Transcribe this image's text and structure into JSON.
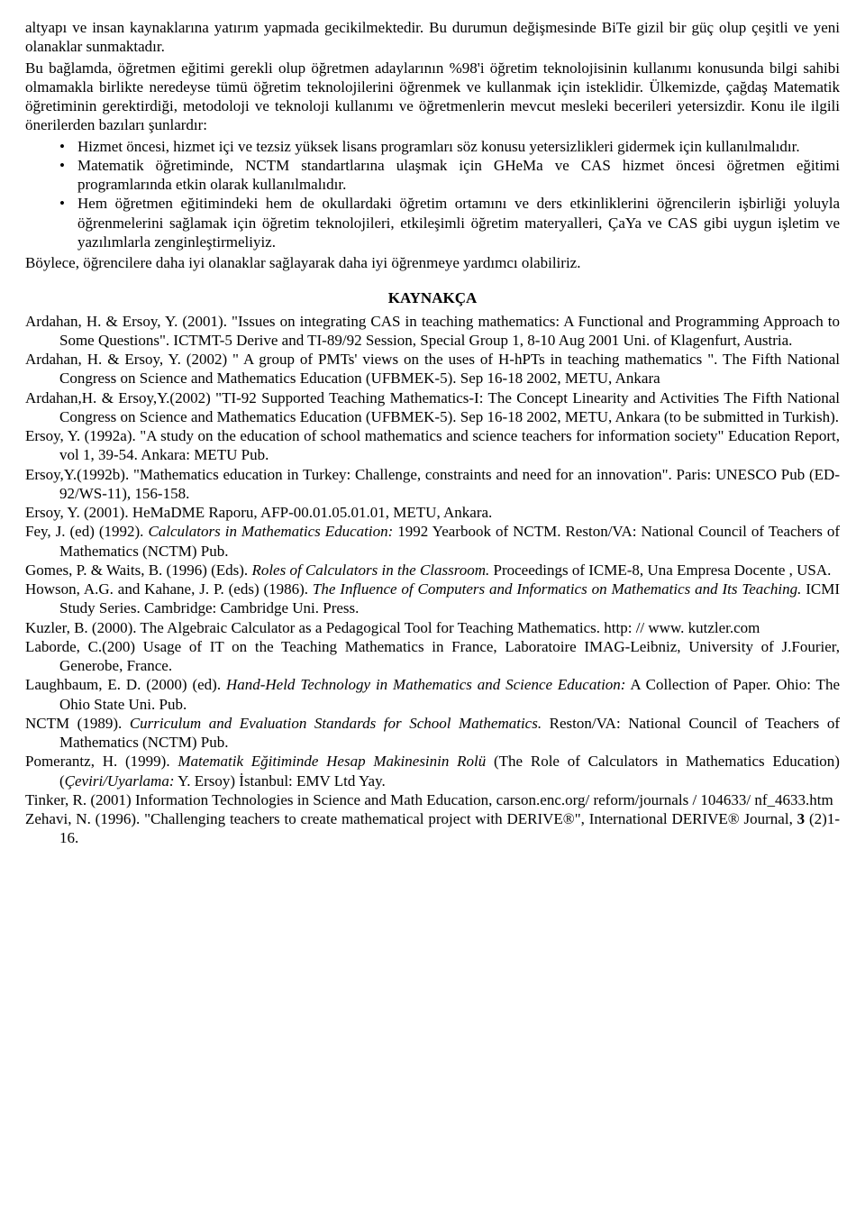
{
  "para1": "altyapı ve insan kaynaklarına yatırım yapmada gecikilmektedir. Bu durumun değişmesinde BiTe gizil bir güç olup çeşitli ve yeni olanaklar sunmaktadır.",
  "para2": "Bu bağlamda, öğretmen eğitimi gerekli olup öğretmen adaylarının %98'i öğretim teknolojisinin kullanımı konusunda bilgi sahibi olmamakla birlikte neredeyse tümü öğretim teknolojilerini öğrenmek ve kullanmak için isteklidir. Ülkemizde, çağdaş Matematik öğretiminin gerektirdiği, metodoloji ve teknoloji kullanımı ve öğretmenlerin mevcut mesleki becerileri yetersizdir. Konu ile ilgili önerilerden bazıları şunlardır:",
  "bullets": [
    "Hizmet öncesi, hizmet içi ve tezsiz yüksek lisans programları söz konusu yetersizlikleri gidermek için kullanılmalıdır.",
    "Matematik öğretiminde, NCTM standartlarına ulaşmak için GHeMa ve CAS hizmet öncesi öğretmen eğitimi programlarında etkin olarak kullanılmalıdır.",
    "Hem öğretmen eğitimindeki hem de okullardaki öğretim ortamını ve ders etkinliklerini öğrencilerin işbirliği yoluyla  öğrenmelerini sağlamak için  öğretim teknolojileri, etkileşimli öğretim materyalleri, ÇaYa ve  CAS gibi uygun işletim ve yazılımlarla zenginleştirmeliyiz."
  ],
  "closing": "Böylece, öğrencilere daha iyi olanaklar sağlayarak daha iyi öğrenmeye yardımcı olabiliriz.",
  "kaynakca": "KAYNAKÇA",
  "refs": {
    "r1a": "Ardahan, H. & Ersoy, Y. (2001). \"Issues on integrating CAS in teaching mathematics: A Functional and Programming Approach to Some Questions\". ICTMT-5 Derive and TI-89/92 Session, Special Group 1, 8-10 Aug 2001 Uni. of Klagenfurt, Austria.",
    "r2a": "Ardahan, H. & Ersoy, Y. (2002) \" A group of PMTs' views on the uses of H-hPTs in teaching mathematics \". The Fifth National Congress on Science and Mathematics Education (UFBMEK-5). Sep 16-18 2002, METU, Ankara",
    "r3a": "Ardahan,H. & Ersoy,Y.(2002) \"TI-92 Supported Teaching Mathematics-I: The Concept Linearity and Activities The Fifth National Congress on Science and Mathematics Education (UFBMEK-5). Sep 16-18 2002, METU, Ankara (to be submitted in Turkish).",
    "r4a": "Ersoy, Y. (1992a). \"A study on the education of school mathematics and science teachers for information society\" Education Report, vol 1, 39-54. Ankara: METU Pub.",
    "r5a": "Ersoy,Y.(1992b). \"Mathematics education in Turkey: Challenge, constraints and need for an innovation\". Paris: UNESCO Pub (ED-92/WS-11), 156-158.",
    "r6a": "Ersoy, Y. (2001). HeMaDME Raporu, AFP-00.01.05.01.01, METU, Ankara.",
    "r7_pre": "Fey, J. (ed) (1992). ",
    "r7_ital": "Calculators in Mathematics Education:",
    "r7_post": " 1992 Yearbook of NCTM. Reston/VA: National Council of Teachers of Mathematics (NCTM) Pub.",
    "r8_pre": "Gomes, P. & Waits, B. (1996) (Eds). ",
    "r8_ital": "Roles of Calculators in the Classroom.",
    "r8_post": " Proceedings of ICME-8, Una Empresa Docente , USA.",
    "r9_pre": "Howson, A.G. and Kahane, J. P. (eds) (1986). ",
    "r9_ital": "The Influence of Computers and Informatics on Mathematics and Its Teaching.",
    "r9_post": " ICMI Study Series. Cambridge: Cambridge Uni. Press.",
    "r10a": "Kuzler, B. (2000). The Algebraic Calculator as a Pedagogical Tool for Teaching Mathematics. http: // www. kutzler.com",
    "r11a": "Laborde, C.(200) Usage of IT on the Teaching Mathematics in France, Laboratoire IMAG-Leibniz, University of J.Fourier, Generobe, France.",
    "r12_pre": "Laughbaum, E. D. (2000) (ed). ",
    "r12_ital": "Hand-Held Technology in Mathematics and Science Education:",
    "r12_post": " A Collection of Paper.  Ohio: The Ohio State Uni. Pub.",
    "r13_pre": "NCTM (1989). ",
    "r13_ital": "Curriculum and Evaluation Standards for School Mathematics.",
    "r13_post": " Reston/VA: National Council of Teachers of Mathematics (NCTM) Pub.",
    "r14_pre": "Pomerantz, H. (1999). ",
    "r14_ital1": "Matematik Eğitiminde Hesap Makinesinin Rolü",
    "r14_mid": " (The Role of Calculators in Mathematics Education) (",
    "r14_ital2": "Çeviri/Uyarlama:",
    "r14_post": " Y. Ersoy) İstanbul: EMV Ltd Yay.",
    "r15a": "Tinker, R. (2001) Information Technologies in Science and Math Education, carson.enc.org/ reform/journals / 104633/ nf_4633.htm",
    "r16_pre": "Zehavi, N. (1996). \"Challenging teachers to create mathematical project with DERIVE®\", International DERIVE® Journal, ",
    "r16_bold": "3",
    "r16_post": " (2)1-16."
  }
}
